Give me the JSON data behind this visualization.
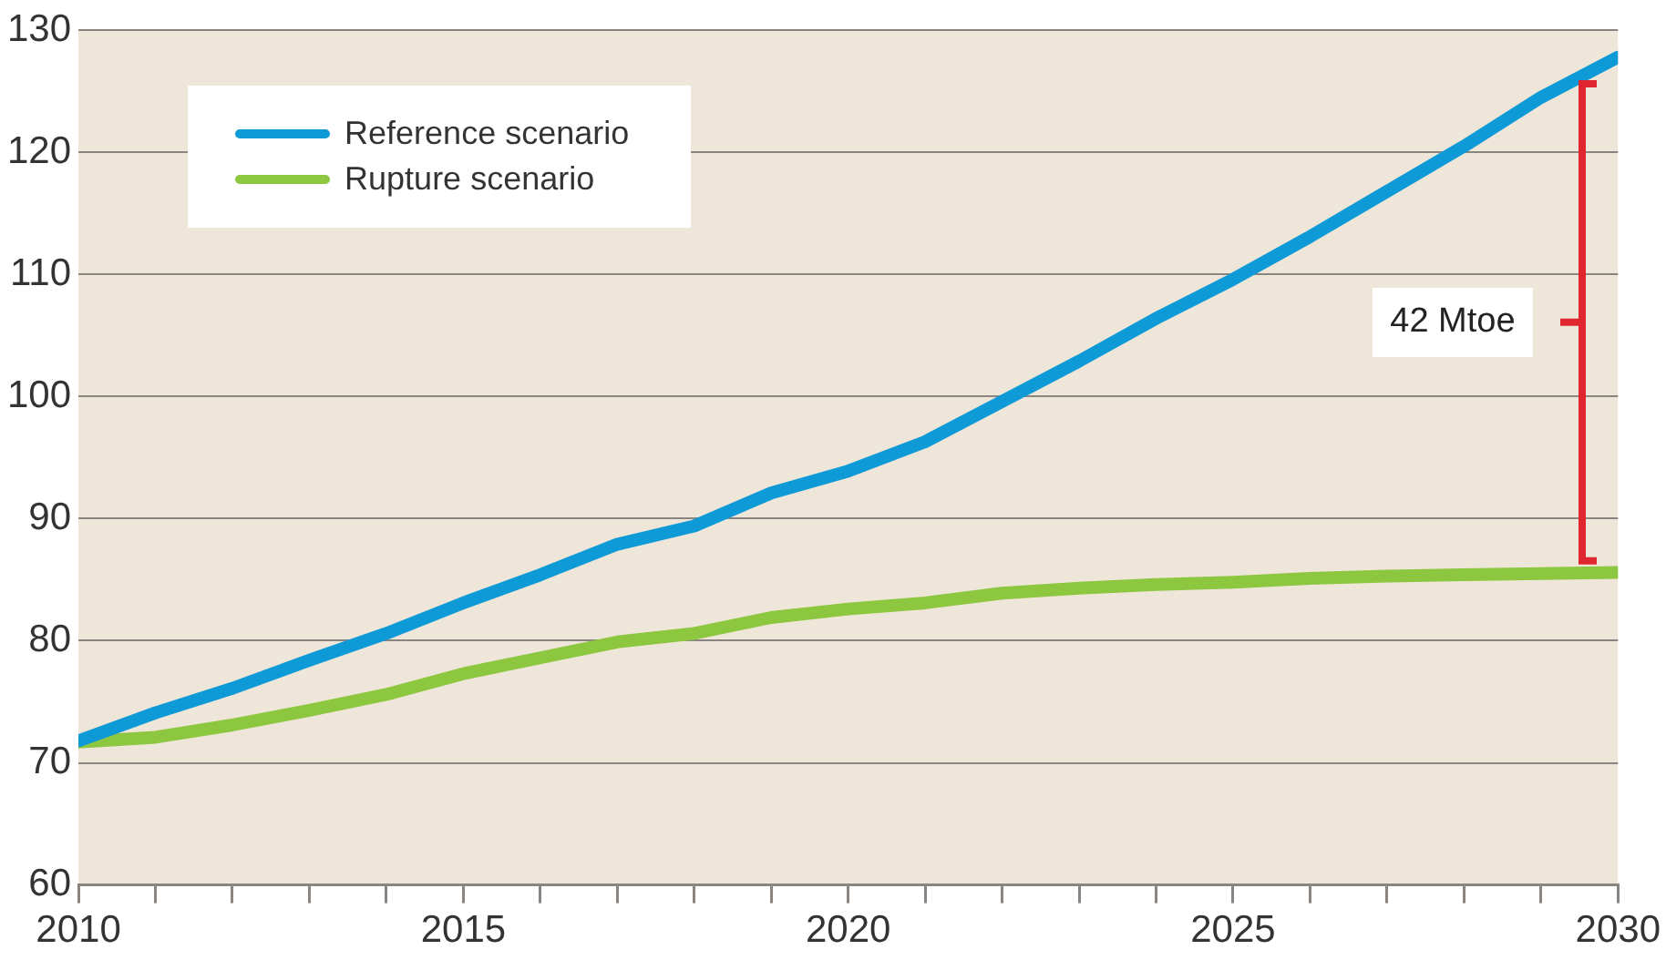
{
  "chart_data": {
    "type": "line",
    "x": [
      2010,
      2011,
      2012,
      2013,
      2014,
      2015,
      2016,
      2017,
      2018,
      2019,
      2020,
      2021,
      2022,
      2023,
      2024,
      2025,
      2026,
      2027,
      2028,
      2029,
      2030
    ],
    "series": [
      {
        "name": "Reference scenario",
        "color": "#0d9ad6",
        "values": [
          71.8,
          74.1,
          76.1,
          78.4,
          80.6,
          83.1,
          85.4,
          87.9,
          89.4,
          92.1,
          93.9,
          96.3,
          99.6,
          102.9,
          106.4,
          109.6,
          113.1,
          116.8,
          120.5,
          124.5,
          127.8
        ]
      },
      {
        "name": "Rupture scenario",
        "color": "#8dc63f",
        "values": [
          71.7,
          72.1,
          73.1,
          74.3,
          75.6,
          77.3,
          78.6,
          79.9,
          80.6,
          81.9,
          82.6,
          83.1,
          83.9,
          84.3,
          84.6,
          84.8,
          85.1,
          85.3,
          85.4,
          85.5,
          85.6
        ]
      }
    ],
    "xlim": [
      2010,
      2030
    ],
    "xticks": [
      2010,
      {
        "value": 2011,
        "label": null
      },
      {
        "value": 2012,
        "label": null
      },
      {
        "value": 2013,
        "label": null
      },
      {
        "value": 2014,
        "label": null
      },
      2015,
      {
        "value": 2016,
        "label": null
      },
      {
        "value": 2017,
        "label": null
      },
      {
        "value": 2018,
        "label": null
      },
      {
        "value": 2019,
        "label": null
      },
      2020,
      {
        "value": 2021,
        "label": null
      },
      {
        "value": 2022,
        "label": null
      },
      {
        "value": 2023,
        "label": null
      },
      {
        "value": 2024,
        "label": null
      },
      2025,
      {
        "value": 2026,
        "label": null
      },
      {
        "value": 2027,
        "label": null
      },
      {
        "value": 2028,
        "label": null
      },
      {
        "value": 2029,
        "label": null
      },
      2030
    ],
    "ylim": [
      60,
      130
    ],
    "yticks": [
      60,
      70,
      80,
      90,
      100,
      110,
      120,
      130
    ],
    "grid": "y",
    "legend": "top left",
    "marker": "none",
    "line_style": "solid",
    "annotations": [
      "42 Mtoe"
    ]
  }
}
